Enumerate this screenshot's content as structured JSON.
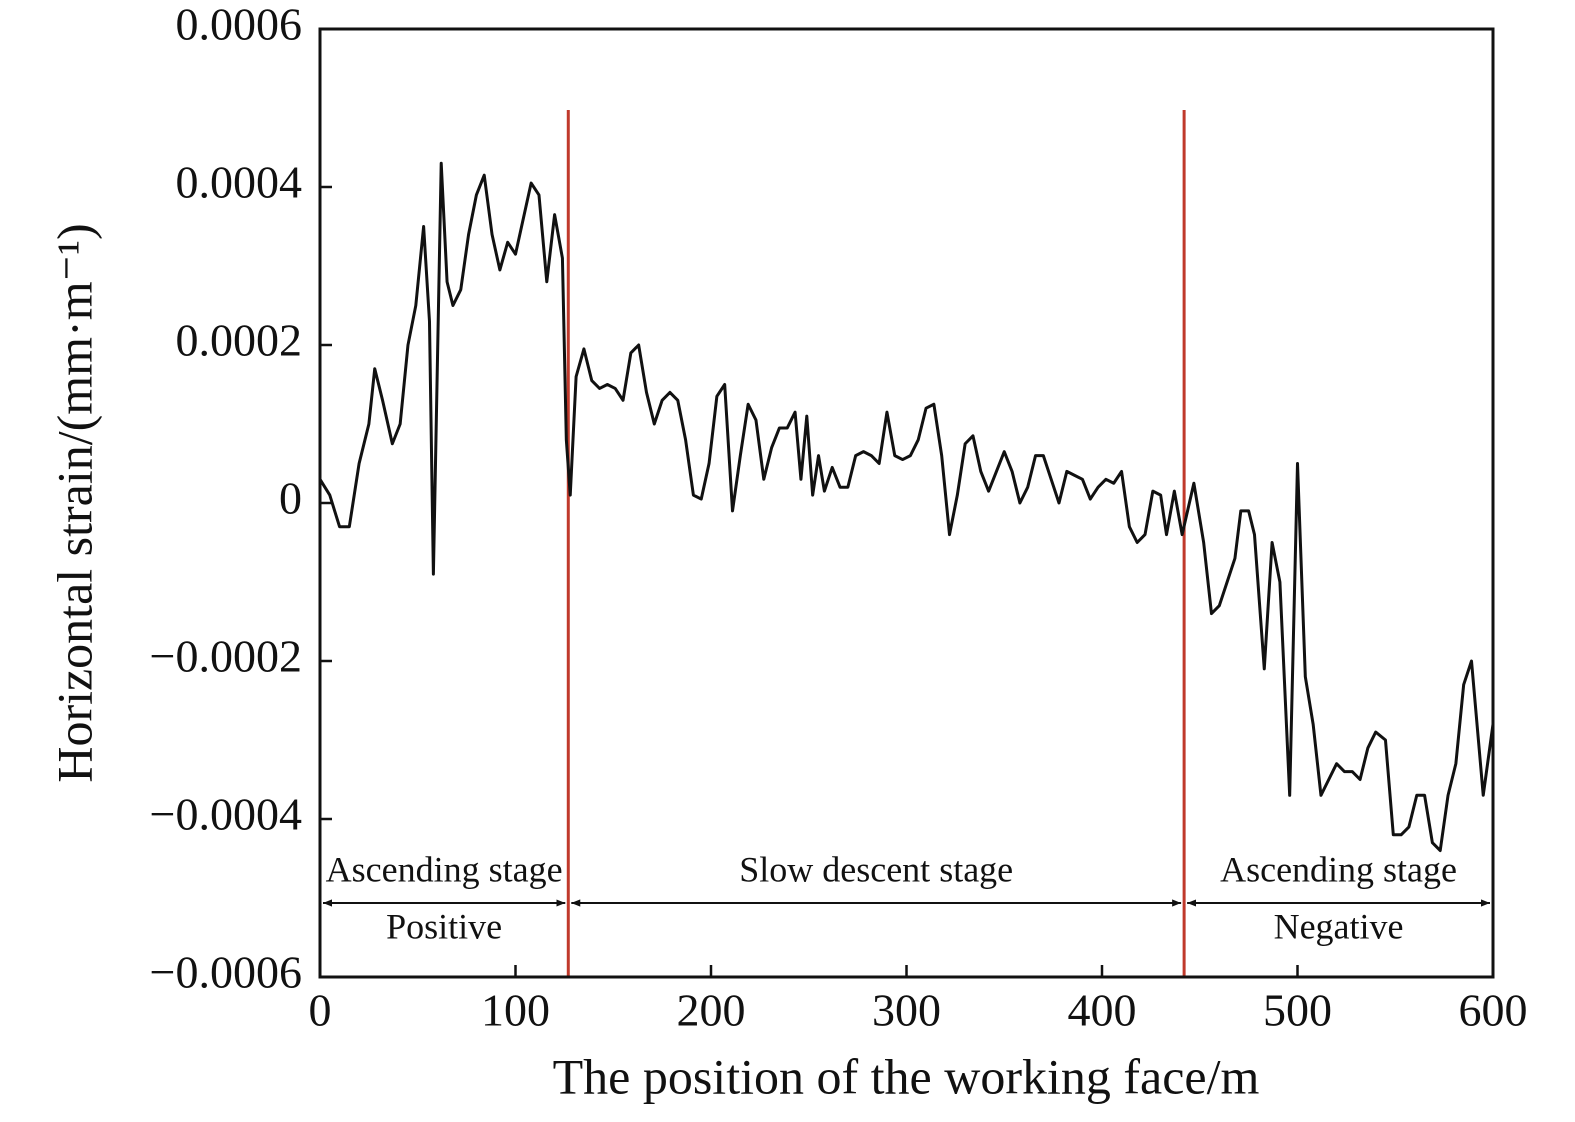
{
  "chart_data": {
    "type": "line",
    "xlabel": "The position of the working face/m",
    "ylabel": "Horizontal strain/(mm·m⁻¹)",
    "xlim": [
      0,
      600
    ],
    "xticks": [
      0,
      100,
      200,
      300,
      400,
      500,
      600
    ],
    "ylim": [
      -0.0006,
      0.0006
    ],
    "yticks": [
      {
        "value": -0.0006,
        "label": "−0.0006"
      },
      {
        "value": -0.0004,
        "label": "−0.0004"
      },
      {
        "value": -0.0002,
        "label": "−0.0002"
      },
      0,
      0.0002,
      0.0004,
      0.0006
    ],
    "color": "#111111",
    "vline_color": "#c0392b",
    "vlines": [
      127,
      442
    ],
    "stages": [
      {
        "label": "Ascending stage",
        "sublabel": "Positive",
        "start": 0,
        "end": 127
      },
      {
        "label": "Slow descent stage",
        "start": 127,
        "end": 442
      },
      {
        "label": "Ascending stage",
        "sublabel": "Negative",
        "start": 442,
        "end": 600
      }
    ],
    "x": [
      0,
      5,
      10,
      15,
      20,
      25,
      28,
      32,
      37,
      41,
      45,
      49,
      53,
      56,
      58,
      62,
      65,
      68,
      72,
      76,
      80,
      84,
      88,
      92,
      96,
      100,
      104,
      108,
      112,
      116,
      120,
      124,
      126,
      128,
      131,
      135,
      139,
      143,
      147,
      151,
      155,
      159,
      163,
      167,
      171,
      175,
      179,
      183,
      187,
      191,
      195,
      199,
      203,
      207,
      211,
      215,
      219,
      223,
      227,
      231,
      235,
      239,
      243,
      246,
      249,
      252,
      255,
      258,
      262,
      266,
      270,
      274,
      278,
      282,
      286,
      290,
      294,
      298,
      302,
      306,
      310,
      314,
      318,
      322,
      326,
      330,
      334,
      338,
      342,
      346,
      350,
      354,
      358,
      362,
      366,
      370,
      374,
      378,
      382,
      386,
      390,
      394,
      398,
      402,
      406,
      410,
      414,
      418,
      422,
      426,
      430,
      433,
      437,
      441,
      447,
      452,
      456,
      460,
      464,
      468,
      471,
      475,
      478,
      483,
      487,
      491,
      496,
      500,
      504,
      508,
      512,
      516,
      520,
      524,
      528,
      532,
      536,
      540,
      545,
      549,
      553,
      557,
      561,
      565,
      569,
      573,
      577,
      581,
      585,
      589,
      595,
      600
    ],
    "values": [
      3e-05,
      1e-05,
      -3e-05,
      -3e-05,
      5e-05,
      0.0001,
      0.00017,
      0.00013,
      7.5e-05,
      0.0001,
      0.0002,
      0.00025,
      0.00035,
      0.00023,
      -9e-05,
      0.00043,
      0.00028,
      0.00025,
      0.00027,
      0.00034,
      0.00039,
      0.000415,
      0.00034,
      0.000295,
      0.00033,
      0.000315,
      0.00036,
      0.000405,
      0.00039,
      0.00028,
      0.000365,
      0.00031,
      8e-05,
      1e-05,
      0.00016,
      0.000195,
      0.000155,
      0.000145,
      0.00015,
      0.000145,
      0.00013,
      0.00019,
      0.0002,
      0.00014,
      0.0001,
      0.00013,
      0.00014,
      0.00013,
      8e-05,
      1e-05,
      5e-06,
      5e-05,
      0.000135,
      0.00015,
      -1e-05,
      6e-05,
      0.000125,
      0.000105,
      3e-05,
      7e-05,
      9.5e-05,
      9.5e-05,
      0.000115,
      3e-05,
      0.00011,
      1e-05,
      6e-05,
      1.5e-05,
      4.5e-05,
      2e-05,
      2e-05,
      6e-05,
      6.5e-05,
      6e-05,
      5e-05,
      0.000115,
      6e-05,
      5.5e-05,
      6e-05,
      8e-05,
      0.00012,
      0.000125,
      6e-05,
      -4e-05,
      1e-05,
      7.5e-05,
      8.5e-05,
      4e-05,
      1.5e-05,
      4e-05,
      6.5e-05,
      4e-05,
      0,
      2e-05,
      6e-05,
      6e-05,
      3e-05,
      0,
      4e-05,
      3.5e-05,
      3e-05,
      5e-06,
      2e-05,
      3e-05,
      2.5e-05,
      4e-05,
      -3e-05,
      -5e-05,
      -4e-05,
      1.5e-05,
      1e-05,
      -4e-05,
      1.5e-05,
      -4e-05,
      2.5e-05,
      -5e-05,
      -0.00014,
      -0.00013,
      -0.0001,
      -7e-05,
      -1e-05,
      -1e-05,
      -4e-05,
      -0.00021,
      -5e-05,
      -0.0001,
      -0.00037,
      5e-05,
      -0.00022,
      -0.00028,
      -0.00037,
      -0.00035,
      -0.00033,
      -0.00034,
      -0.00034,
      -0.00035,
      -0.00031,
      -0.00029,
      -0.0003,
      -0.00042,
      -0.00042,
      -0.00041,
      -0.00037,
      -0.00037,
      -0.00043,
      -0.00044,
      -0.00037,
      -0.00033,
      -0.00023,
      -0.0002,
      -0.00037,
      -0.00028
    ]
  }
}
